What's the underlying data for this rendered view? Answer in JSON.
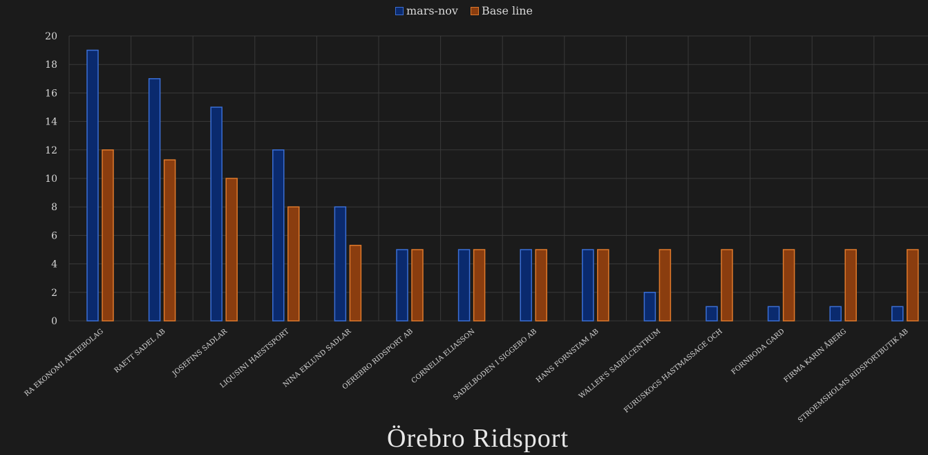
{
  "colors": {
    "background": "#1b1b1b",
    "grid": "#3a3a3a",
    "series_1": "#0a2a6e",
    "series_1_edge": "#3b6fd6",
    "series_2": "#8a3d0f",
    "series_2_edge": "#e07a2c",
    "text": "#d8d8d8"
  },
  "logo": {
    "text": "Örebro Ridsport"
  },
  "chart_data": {
    "type": "bar",
    "title": "",
    "xlabel": "",
    "ylabel": "",
    "ylim": [
      0,
      20
    ],
    "yticks": [
      0,
      2,
      4,
      6,
      8,
      10,
      12,
      14,
      16,
      18,
      20
    ],
    "grid": true,
    "legend_position": "top-center",
    "categories": [
      "RA EKONOMI AKTIEBOLAG",
      "RAETT SADEL AB",
      "JOSEFINS SADLAR",
      "LIQUSINI HAESTSPORT",
      "NINA EKLUND SADLAR",
      "OEREBRO RIDSPORT AB",
      "CORNELIA ELIASSON",
      "SADELBODEN I SIGGEBO AB",
      "HANS FORNSTAM AB",
      "WALLER'S SADELCENTRUM",
      "FURUSKOGS HASTMASSAGE OCH",
      "FORNBODA GARD",
      "FIRMA KARIN ÅBERG",
      "STROEMSHOLMS RIDSPORTBUTIK AB"
    ],
    "series": [
      {
        "name": "mars-nov",
        "values": [
          19,
          17,
          15,
          12,
          8,
          5,
          5,
          5,
          5,
          2,
          1,
          1,
          1,
          1
        ]
      },
      {
        "name": "Base line",
        "values": [
          12,
          11.3,
          10,
          8,
          5.3,
          5,
          5,
          5,
          5,
          5,
          5,
          5,
          5,
          5
        ]
      }
    ]
  }
}
